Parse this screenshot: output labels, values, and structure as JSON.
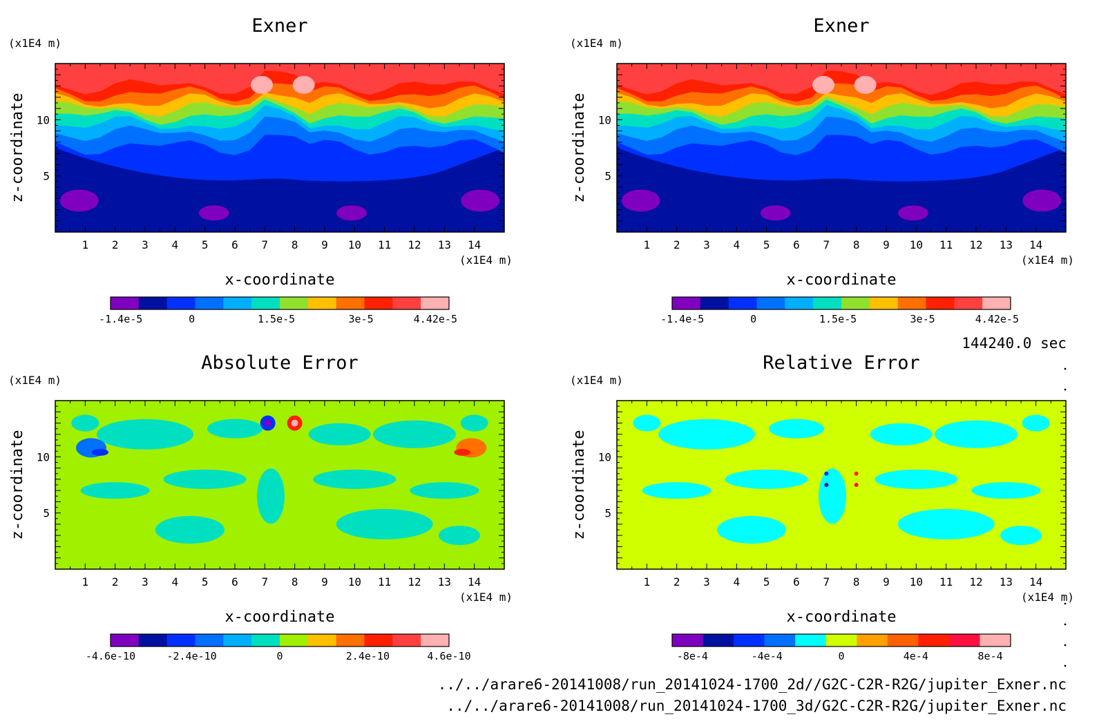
{
  "time_label": "144240.0 sec",
  "file_paths": [
    "../../arare6-20141008/run_20141024-1700_2d//G2C-C2R-R2G/jupiter_Exner.nc",
    "../../arare6-20141008/run_20141024-1700_3d/G2C-C2R-R2G/jupiter_Exner.nc"
  ],
  "chart_data": [
    {
      "type": "heatmap",
      "title": "Exner",
      "xlabel": "x-coordinate",
      "ylabel": "z-coordinate",
      "x_unit": "(x1E4 m)",
      "y_unit": "(x1E4 m)",
      "xlim": [
        0,
        15
      ],
      "ylim": [
        0,
        15
      ],
      "x_ticks": [
        "1",
        "2",
        "3",
        "4",
        "5",
        "6",
        "7",
        "8",
        "9",
        "10",
        "11",
        "12",
        "13",
        "14"
      ],
      "y_ticks": [
        "5",
        "10"
      ],
      "colorbar": {
        "tick_labels": [
          "-1.4e-5",
          "0",
          "1.5e-5",
          "3e-5",
          "4.42e-5"
        ],
        "tick_fractions": [
          0.03,
          0.24,
          0.49,
          0.74,
          0.96
        ],
        "colors": [
          "#8000c0",
          "#0010a0",
          "#0030ff",
          "#0070ff",
          "#00b0ff",
          "#00e0c0",
          "#90e030",
          "#ffc000",
          "#ff7000",
          "#ff2000",
          "#ff4040",
          "#ffb0b0"
        ]
      }
    },
    {
      "type": "heatmap",
      "title": "Exner",
      "xlabel": "x-coordinate",
      "ylabel": "z-coordinate",
      "x_unit": "(x1E4 m)",
      "y_unit": "(x1E4 m)",
      "xlim": [
        0,
        15
      ],
      "ylim": [
        0,
        15
      ],
      "x_ticks": [
        "1",
        "2",
        "3",
        "4",
        "5",
        "6",
        "7",
        "8",
        "9",
        "10",
        "11",
        "12",
        "13",
        "14"
      ],
      "y_ticks": [
        "5",
        "10"
      ],
      "colorbar": {
        "tick_labels": [
          "-1.4e-5",
          "0",
          "1.5e-5",
          "3e-5",
          "4.42e-5"
        ],
        "tick_fractions": [
          0.03,
          0.24,
          0.49,
          0.74,
          0.96
        ],
        "colors": [
          "#8000c0",
          "#0010a0",
          "#0030ff",
          "#0070ff",
          "#00b0ff",
          "#00e0c0",
          "#90e030",
          "#ffc000",
          "#ff7000",
          "#ff2000",
          "#ff4040",
          "#ffb0b0"
        ]
      }
    },
    {
      "type": "heatmap",
      "title": "Absolute Error",
      "xlabel": "x-coordinate",
      "ylabel": "z-coordinate",
      "x_unit": "(x1E4 m)",
      "y_unit": "(x1E4 m)",
      "xlim": [
        0,
        15
      ],
      "ylim": [
        0,
        15
      ],
      "x_ticks": [
        "1",
        "2",
        "3",
        "4",
        "5",
        "6",
        "7",
        "8",
        "9",
        "10",
        "11",
        "12",
        "13",
        "14"
      ],
      "y_ticks": [
        "5",
        "10"
      ],
      "colorbar": {
        "tick_labels": [
          "-4.6e-10",
          "-2.4e-10",
          "0",
          "2.4e-10",
          "4.6e-10"
        ],
        "tick_fractions": [
          0.0,
          0.24,
          0.5,
          0.76,
          1.0
        ],
        "colors": [
          "#8000c0",
          "#0010a0",
          "#0030ff",
          "#0070ff",
          "#00b0ff",
          "#00e0c0",
          "#a0f000",
          "#ffc000",
          "#ff7000",
          "#ff2000",
          "#ff4040",
          "#ffb0b0"
        ]
      }
    },
    {
      "type": "heatmap",
      "title": "Relative Error",
      "xlabel": "x-coordinate",
      "ylabel": "z-coordinate",
      "x_unit": "(x1E4 m)",
      "y_unit": "(x1E4 m)",
      "xlim": [
        0,
        15
      ],
      "ylim": [
        0,
        15
      ],
      "x_ticks": [
        "1",
        "2",
        "3",
        "4",
        "5",
        "6",
        "7",
        "8",
        "9",
        "10",
        "11",
        "12",
        "13",
        "14"
      ],
      "y_ticks": [
        "5",
        "10"
      ],
      "colorbar": {
        "tick_labels": [
          "-8e-4",
          "-4e-4",
          "0",
          "4e-4",
          "8e-4"
        ],
        "tick_fractions": [
          0.06,
          0.28,
          0.5,
          0.72,
          0.94
        ],
        "colors": [
          "#8000c0",
          "#0010a0",
          "#0030ff",
          "#0070ff",
          "#00ffff",
          "#d0ff00",
          "#ffa000",
          "#ff6000",
          "#ff2000",
          "#ff1040",
          "#ffb0b0"
        ]
      }
    }
  ]
}
